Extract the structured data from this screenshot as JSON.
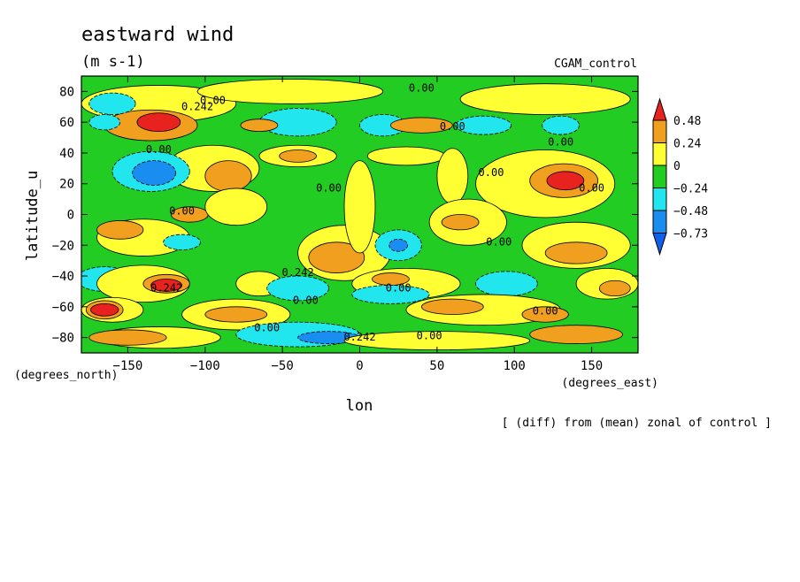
{
  "chart_data": {
    "type": "heatmap",
    "title": "eastward wind",
    "units": "(m s-1)",
    "run_label": "CGAM_control",
    "xlabel": "lon",
    "ylabel": "latitude_u",
    "x_units_label": "(degrees_east)",
    "y_units_label": "(degrees_north)",
    "note": "[ (diff) from (mean) zonal of control ]",
    "xlim": [
      -180,
      180
    ],
    "ylim": [
      -90,
      90
    ],
    "x_ticks": [
      -150,
      -100,
      -50,
      0,
      50,
      100,
      150
    ],
    "x_tick_labels": [
      "−150",
      "−100",
      "−50",
      "0",
      "50",
      "100",
      "150"
    ],
    "y_ticks": [
      80,
      60,
      40,
      20,
      0,
      -20,
      -40,
      -60,
      -80
    ],
    "y_tick_labels": [
      "80",
      "60",
      "40",
      "20",
      "0",
      "−20",
      "−40",
      "−60",
      "−80"
    ],
    "legend": {
      "labels": [
        "0.48",
        "0.24",
        "0",
        "−0.24",
        "−0.48",
        "−0.73"
      ],
      "colors": [
        "#e8221f",
        "#f0a01e",
        "#ffff33",
        "#22cc22",
        "#22e6ee",
        "#1a8ef0",
        "#1060e8"
      ]
    },
    "contour_labels": [
      {
        "text": "0.00",
        "lon": -95,
        "lat": 72
      },
      {
        "text": "0.00",
        "lon": 40,
        "lat": 80
      },
      {
        "text": "0.242",
        "lon": -105,
        "lat": 68
      },
      {
        "text": "0.00",
        "lon": -130,
        "lat": 40
      },
      {
        "text": "0.00",
        "lon": 60,
        "lat": 55
      },
      {
        "text": "0.00",
        "lon": 130,
        "lat": 45
      },
      {
        "text": "0.00",
        "lon": -20,
        "lat": 15
      },
      {
        "text": "0.00",
        "lon": 85,
        "lat": 25
      },
      {
        "text": "0.00",
        "lon": 150,
        "lat": 15
      },
      {
        "text": "0.00",
        "lon": -115,
        "lat": 0
      },
      {
        "text": "0.00",
        "lon": 90,
        "lat": -20
      },
      {
        "text": "0.242",
        "lon": -40,
        "lat": -40
      },
      {
        "text": "0.242",
        "lon": -125,
        "lat": -50
      },
      {
        "text": "0.00",
        "lon": -35,
        "lat": -58
      },
      {
        "text": "0.00",
        "lon": 25,
        "lat": -50
      },
      {
        "text": "0.00",
        "lon": 120,
        "lat": -65
      },
      {
        "text": "0.00",
        "lon": -60,
        "lat": -76
      },
      {
        "text": "0.242",
        "lon": 0,
        "lat": -82
      },
      {
        "text": "0.00",
        "lon": 45,
        "lat": -81
      }
    ],
    "field": {
      "base": "green",
      "levels": [
        "red",
        "orange",
        "yellow",
        "green",
        "cyan",
        "blue"
      ],
      "regions": [
        {
          "level": "yellow",
          "cx": -130,
          "cy": 72,
          "rx": 50,
          "ry": 12
        },
        {
          "level": "orange",
          "cx": -135,
          "cy": 58,
          "rx": 30,
          "ry": 10
        },
        {
          "level": "red",
          "cx": -130,
          "cy": 60,
          "rx": 14,
          "ry": 6
        },
        {
          "level": "yellow",
          "cx": -45,
          "cy": 80,
          "rx": 60,
          "ry": 8
        },
        {
          "level": "cyan",
          "cx": -160,
          "cy": 72,
          "rx": 15,
          "ry": 7
        },
        {
          "level": "cyan",
          "cx": -40,
          "cy": 60,
          "rx": 25,
          "ry": 9
        },
        {
          "level": "orange",
          "cx": -65,
          "cy": 58,
          "rx": 12,
          "ry": 4
        },
        {
          "level": "cyan",
          "cx": 15,
          "cy": 58,
          "rx": 15,
          "ry": 7
        },
        {
          "level": "orange",
          "cx": 40,
          "cy": 58,
          "rx": 20,
          "ry": 5
        },
        {
          "level": "cyan",
          "cx": 80,
          "cy": 58,
          "rx": 18,
          "ry": 6
        },
        {
          "level": "yellow",
          "cx": 120,
          "cy": 75,
          "rx": 55,
          "ry": 10
        },
        {
          "level": "cyan",
          "cx": 130,
          "cy": 58,
          "rx": 12,
          "ry": 6
        },
        {
          "level": "cyan",
          "cx": -165,
          "cy": 60,
          "rx": 10,
          "ry": 5
        },
        {
          "level": "yellow",
          "cx": -95,
          "cy": 30,
          "rx": 30,
          "ry": 15
        },
        {
          "level": "orange",
          "cx": -85,
          "cy": 25,
          "rx": 15,
          "ry": 10
        },
        {
          "level": "cyan",
          "cx": -135,
          "cy": 28,
          "rx": 25,
          "ry": 13
        },
        {
          "level": "blue",
          "cx": -133,
          "cy": 27,
          "rx": 14,
          "ry": 8
        },
        {
          "level": "yellow",
          "cx": -40,
          "cy": 38,
          "rx": 25,
          "ry": 7
        },
        {
          "level": "orange",
          "cx": -40,
          "cy": 38,
          "rx": 12,
          "ry": 4
        },
        {
          "level": "yellow",
          "cx": 30,
          "cy": 38,
          "rx": 25,
          "ry": 6
        },
        {
          "level": "yellow",
          "cx": 60,
          "cy": 25,
          "rx": 10,
          "ry": 18
        },
        {
          "level": "yellow",
          "cx": 120,
          "cy": 20,
          "rx": 45,
          "ry": 22
        },
        {
          "level": "orange",
          "cx": 132,
          "cy": 22,
          "rx": 22,
          "ry": 11
        },
        {
          "level": "red",
          "cx": 133,
          "cy": 22,
          "rx": 12,
          "ry": 6
        },
        {
          "level": "yellow",
          "cx": -140,
          "cy": -15,
          "rx": 30,
          "ry": 12
        },
        {
          "level": "orange",
          "cx": -155,
          "cy": -10,
          "rx": 15,
          "ry": 6
        },
        {
          "level": "orange",
          "cx": -110,
          "cy": 0,
          "rx": 12,
          "ry": 5
        },
        {
          "level": "yellow",
          "cx": -80,
          "cy": 5,
          "rx": 20,
          "ry": 12
        },
        {
          "level": "cyan",
          "cx": -115,
          "cy": -18,
          "rx": 12,
          "ry": 5
        },
        {
          "level": "yellow",
          "cx": -10,
          "cy": -25,
          "rx": 30,
          "ry": 18
        },
        {
          "level": "orange",
          "cx": -15,
          "cy": -28,
          "rx": 18,
          "ry": 10
        },
        {
          "level": "yellow",
          "cx": 0,
          "cy": 5,
          "rx": 10,
          "ry": 30
        },
        {
          "level": "cyan",
          "cx": 25,
          "cy": -20,
          "rx": 15,
          "ry": 10
        },
        {
          "level": "blue",
          "cx": 25,
          "cy": -20,
          "rx": 6,
          "ry": 4
        },
        {
          "level": "yellow",
          "cx": 70,
          "cy": -5,
          "rx": 25,
          "ry": 15
        },
        {
          "level": "orange",
          "cx": 65,
          "cy": -5,
          "rx": 12,
          "ry": 5
        },
        {
          "level": "yellow",
          "cx": 140,
          "cy": -20,
          "rx": 35,
          "ry": 15
        },
        {
          "level": "orange",
          "cx": 140,
          "cy": -25,
          "rx": 20,
          "ry": 7
        },
        {
          "level": "cyan",
          "cx": -165,
          "cy": -42,
          "rx": 18,
          "ry": 8
        },
        {
          "level": "yellow",
          "cx": -140,
          "cy": -45,
          "rx": 30,
          "ry": 12
        },
        {
          "level": "orange",
          "cx": -125,
          "cy": -45,
          "rx": 15,
          "ry": 6
        },
        {
          "level": "red",
          "cx": -125,
          "cy": -46,
          "rx": 10,
          "ry": 4
        },
        {
          "level": "yellow",
          "cx": -65,
          "cy": -45,
          "rx": 15,
          "ry": 8
        },
        {
          "level": "cyan",
          "cx": -40,
          "cy": -48,
          "rx": 20,
          "ry": 8
        },
        {
          "level": "yellow",
          "cx": 30,
          "cy": -45,
          "rx": 35,
          "ry": 10
        },
        {
          "level": "orange",
          "cx": 20,
          "cy": -42,
          "rx": 12,
          "ry": 4
        },
        {
          "level": "cyan",
          "cx": 20,
          "cy": -52,
          "rx": 25,
          "ry": 6
        },
        {
          "level": "cyan",
          "cx": 95,
          "cy": -45,
          "rx": 20,
          "ry": 8
        },
        {
          "level": "yellow",
          "cx": 160,
          "cy": -45,
          "rx": 20,
          "ry": 10
        },
        {
          "level": "orange",
          "cx": 165,
          "cy": -48,
          "rx": 10,
          "ry": 5
        },
        {
          "level": "yellow",
          "cx": -160,
          "cy": -62,
          "rx": 20,
          "ry": 8
        },
        {
          "level": "orange",
          "cx": -165,
          "cy": -62,
          "rx": 12,
          "ry": 6
        },
        {
          "level": "red",
          "cx": -165,
          "cy": -62,
          "rx": 9,
          "ry": 4
        },
        {
          "level": "yellow",
          "cx": -80,
          "cy": -65,
          "rx": 35,
          "ry": 10
        },
        {
          "level": "orange",
          "cx": -80,
          "cy": -65,
          "rx": 20,
          "ry": 5
        },
        {
          "level": "yellow",
          "cx": 80,
          "cy": -62,
          "rx": 50,
          "ry": 10
        },
        {
          "level": "orange",
          "cx": 60,
          "cy": -60,
          "rx": 20,
          "ry": 5
        },
        {
          "level": "orange",
          "cx": 120,
          "cy": -65,
          "rx": 15,
          "ry": 5
        },
        {
          "level": "yellow",
          "cx": -130,
          "cy": -80,
          "rx": 40,
          "ry": 7
        },
        {
          "level": "orange",
          "cx": -150,
          "cy": -80,
          "rx": 25,
          "ry": 5
        },
        {
          "level": "cyan",
          "cx": -40,
          "cy": -78,
          "rx": 40,
          "ry": 8
        },
        {
          "level": "blue",
          "cx": -20,
          "cy": -80,
          "rx": 20,
          "ry": 4
        },
        {
          "level": "yellow",
          "cx": 50,
          "cy": -82,
          "rx": 60,
          "ry": 6
        },
        {
          "level": "orange",
          "cx": 140,
          "cy": -78,
          "rx": 30,
          "ry": 6
        }
      ]
    }
  }
}
